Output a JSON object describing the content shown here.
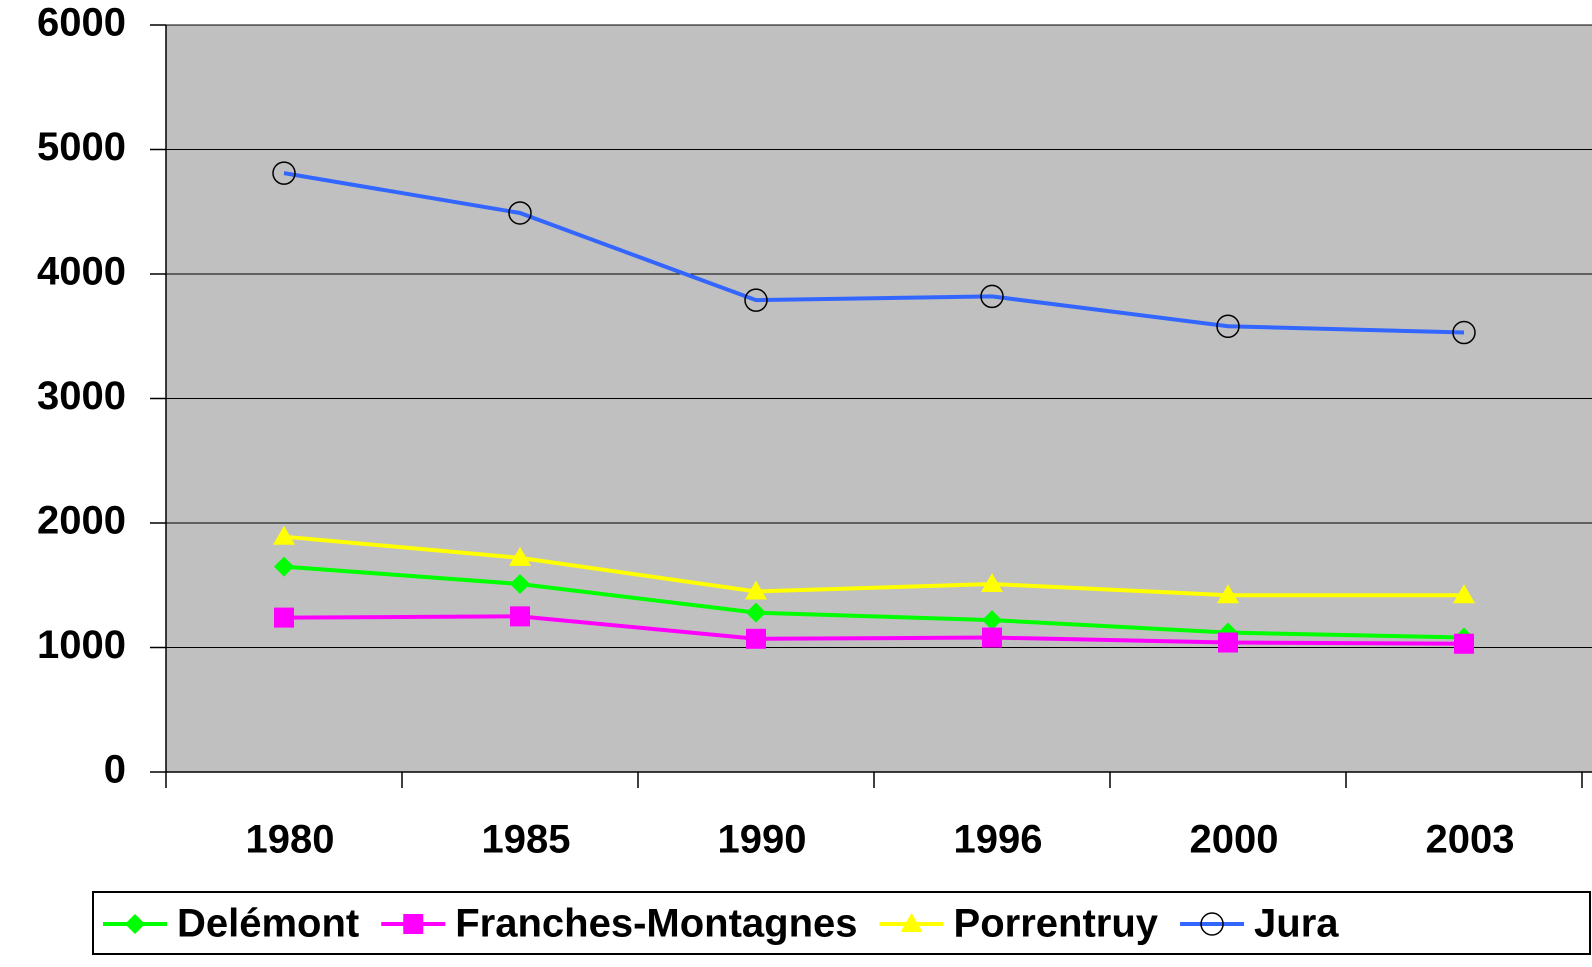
{
  "chart_data": {
    "type": "line",
    "categories": [
      "1980",
      "1985",
      "1990",
      "1996",
      "2000",
      "2003"
    ],
    "series": [
      {
        "name": "Delémont",
        "color": "#00ff00",
        "marker": "diamond",
        "values": [
          1650,
          1510,
          1280,
          1220,
          1120,
          1080
        ]
      },
      {
        "name": "Franches-Montagnes",
        "color": "#ff00ff",
        "marker": "square",
        "values": [
          1240,
          1250,
          1070,
          1080,
          1040,
          1030
        ]
      },
      {
        "name": "Porrentruy",
        "color": "#ffff00",
        "marker": "triangle",
        "values": [
          1890,
          1720,
          1450,
          1510,
          1420,
          1420
        ]
      },
      {
        "name": "Jura",
        "color": "#3366ff",
        "marker": "circle",
        "values": [
          4810,
          4490,
          3790,
          3820,
          3580,
          3530
        ]
      }
    ],
    "ylim": [
      0,
      6000
    ],
    "yticks": [
      0,
      1000,
      2000,
      3000,
      4000,
      5000,
      6000
    ],
    "grid": true,
    "legend": "bottom"
  }
}
